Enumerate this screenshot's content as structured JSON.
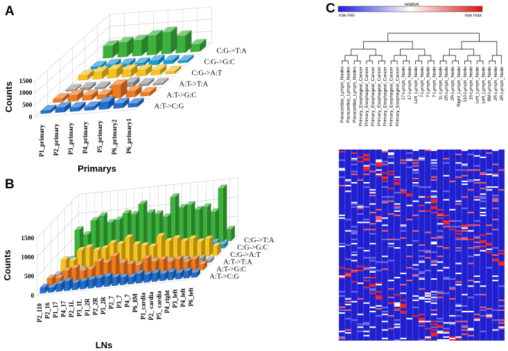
{
  "panels": {
    "a": "A",
    "b": "B",
    "c": "C"
  },
  "colors": {
    "A:T->C:G": "#1f6fd1",
    "A:T->G:C": "#f07a1e",
    "A:T->T:A": "#9a9a9a",
    "C:G->A:T": "#f7c21a",
    "C:G->G:C": "#1a9bd6",
    "C:G->T:A": "#3cb23c"
  },
  "chart_data": [
    {
      "id": "A",
      "type": "bar",
      "style": "3d",
      "xlabel": "Primarys",
      "ylabel": "Counts",
      "ylim": [
        0,
        1500
      ],
      "yticks": [
        0,
        500,
        1000,
        1500
      ],
      "categories": [
        "P1_primary",
        "P2_primary",
        "P3_primary",
        "P4_primary",
        "P5_primary",
        "P6_primary2",
        "P6_primary1"
      ],
      "series": [
        {
          "name": "A:T->C:G",
          "values": [
            120,
            200,
            160,
            140,
            300,
            200,
            150
          ]
        },
        {
          "name": "A:T->G:C",
          "values": [
            150,
            250,
            200,
            180,
            550,
            250,
            150
          ]
        },
        {
          "name": "A:T->T:A",
          "values": [
            60,
            100,
            80,
            70,
            180,
            90,
            60
          ]
        },
        {
          "name": "C:G->A:T",
          "values": [
            200,
            300,
            350,
            300,
            250,
            200,
            100
          ]
        },
        {
          "name": "C:G->G:C",
          "values": [
            100,
            150,
            130,
            120,
            180,
            140,
            90
          ]
        },
        {
          "name": "C:G->T:A",
          "values": [
            500,
            600,
            650,
            800,
            900,
            700,
            300
          ]
        }
      ]
    },
    {
      "id": "B",
      "type": "bar",
      "style": "3d",
      "xlabel": "LNs",
      "ylabel": "Counts",
      "ylim": [
        0,
        1500
      ],
      "yticks": [
        0,
        500,
        1000,
        1500
      ],
      "categories": [
        "P2_110",
        "P2_16",
        "P1_17",
        "P4_17",
        "P2_1L",
        "P3_1L",
        "P1_2R",
        "P2_2R",
        "P5_2R",
        "P2_7",
        "P3_7",
        "P4_7",
        "P6_8M",
        "P1_cardia",
        "P2_ cardia",
        "P5_ cardia",
        "P4_right",
        "P3_left",
        "P4_left",
        "P6_left"
      ],
      "series": [
        {
          "name": "A:T->C:G",
          "values": [
            150,
            120,
            200,
            250,
            180,
            200,
            220,
            240,
            260,
            220,
            200,
            180,
            250,
            200,
            220,
            180,
            200,
            160,
            180,
            120
          ]
        },
        {
          "name": "A:T->G:C",
          "values": [
            200,
            180,
            350,
            400,
            300,
            320,
            500,
            450,
            600,
            400,
            350,
            300,
            450,
            350,
            380,
            300,
            350,
            250,
            300,
            150
          ]
        },
        {
          "name": "A:T->T:A",
          "values": [
            100,
            80,
            150,
            180,
            140,
            150,
            200,
            180,
            250,
            170,
            150,
            130,
            200,
            160,
            170,
            140,
            160,
            120,
            140,
            70
          ]
        },
        {
          "name": "C:G->A:T",
          "values": [
            300,
            250,
            500,
            550,
            450,
            480,
            600,
            550,
            700,
            500,
            450,
            400,
            650,
            500,
            550,
            450,
            500,
            400,
            450,
            250
          ]
        },
        {
          "name": "C:G->G:C",
          "values": [
            120,
            100,
            200,
            220,
            180,
            200,
            250,
            230,
            300,
            210,
            190,
            170,
            260,
            200,
            220,
            180,
            200,
            160,
            180,
            100
          ]
        },
        {
          "name": "C:G->T:A",
          "values": [
            700,
            550,
            900,
            1000,
            800,
            850,
            1000,
            950,
            1200,
            950,
            900,
            800,
            1300,
            1000,
            1050,
            900,
            950,
            800,
            1400,
            300
          ]
        }
      ]
    },
    {
      "id": "C",
      "type": "heatmap",
      "legend": {
        "title": "relative",
        "min_label": "row min",
        "max_label": "row max",
        "min_color": "#1c1cdc",
        "max_color": "#e01010"
      },
      "columns": [
        "Paracardiac_Lymph_Nodes",
        "Paracardiac_Lymph_Nodes",
        "Paracardiac_Lymph_Nodes",
        "Primary_Esophageal_Cancer",
        "Primary_Esophageal_Cancer",
        "Primary_Esophageal_Cancer",
        "Primary_Esophageal_Cancer",
        "Primary_Esophageal_Cancer",
        "Primary_Esophageal_Cancer",
        "Primary_Esophageal_Cancer",
        "17-Lymph_Node",
        "17-Lymph_Node",
        "Left_Lymph_Node",
        "7-Lymph_Node",
        "7-Lymph_Node",
        "7-Lymph_Node",
        "1L-Lymph_Node",
        "2R-Lymph_Node",
        "2R-Lymph_Node",
        "Right_Lymph_Node",
        "110-Lymph_Node",
        "16-Lymph_Node",
        "Left_Lymph_Node",
        "Left_Lymph_Node",
        "8M-Lymph_Node",
        "2R-Lymph_Node",
        "2R-Lymph_Node"
      ]
    }
  ]
}
